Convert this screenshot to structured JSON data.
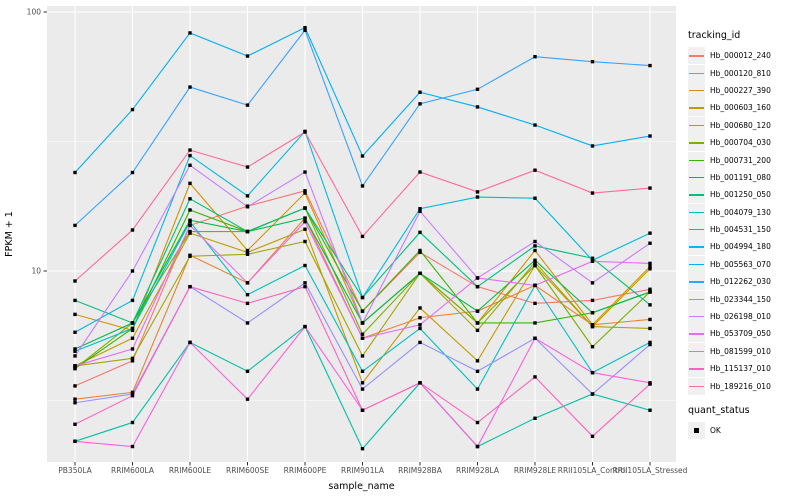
{
  "chart_data": {
    "type": "line",
    "title": "",
    "xlabel": "sample_name",
    "ylabel": "FPKM + 1",
    "y_scale": "log10",
    "y_ticks": [
      10,
      100
    ],
    "y_minor_ticks": [
      3.1623,
      31.623
    ],
    "ylim": [
      1.83,
      105
    ],
    "grid": true,
    "legend_position": "right",
    "legend_title": "tracking_id",
    "legend2_title": "quant_status",
    "legend2_items": [
      {
        "label": "OK",
        "marker": "black-square"
      }
    ],
    "point_color": "#000000",
    "panel_bg": "#EBEBEB",
    "grid_color": "#FFFFFF",
    "tick_label_color": "#4D4D4D",
    "categories": [
      "PB350LA",
      "RRIM600LA",
      "RRIM600LE",
      "RRIM600SE",
      "RRIM600PE",
      "RRIM901LA",
      "RRIM928BA",
      "RRIM928LA",
      "RRIM928LE",
      "RRII105LA_Control",
      "RRII105LA_Stressed"
    ],
    "series": [
      {
        "name": "Hb_000012_240",
        "color": "#F8766D",
        "values": [
          3.6,
          4.5,
          15.0,
          17.8,
          20.4,
          7.0,
          11.8,
          8.7,
          7.5,
          7.7,
          8.5
        ]
      },
      {
        "name": "Hb_000120_810",
        "color": "#EA8331",
        "values": [
          3.2,
          3.4,
          11.5,
          9.0,
          16.0,
          5.5,
          6.6,
          7.0,
          8.8,
          6.2,
          6.5
        ]
      },
      {
        "name": "Hb_000227_390",
        "color": "#D89000",
        "values": [
          6.8,
          5.9,
          21.8,
          12.0,
          20.0,
          6.3,
          9.8,
          6.3,
          12.0,
          6.2,
          10.4
        ]
      },
      {
        "name": "Hb_000603_160",
        "color": "#C09B00",
        "values": [
          4.3,
          5.5,
          14.0,
          11.8,
          14.5,
          3.7,
          7.2,
          4.5,
          10.5,
          6.1,
          10.2
        ]
      },
      {
        "name": "Hb_000680_120",
        "color": "#A3A500",
        "values": [
          4.3,
          4.6,
          11.4,
          11.6,
          13.0,
          4.7,
          9.8,
          5.9,
          10.8,
          6.1,
          6.0
        ]
      },
      {
        "name": "Hb_000704_030",
        "color": "#7CAE00",
        "values": [
          4.2,
          6.3,
          14.2,
          14.2,
          17.5,
          5.7,
          9.8,
          6.3,
          10.5,
          5.1,
          8.3
        ]
      },
      {
        "name": "Hb_000731_200",
        "color": "#39B600",
        "values": [
          4.2,
          6.0,
          17.2,
          14.2,
          17.5,
          7.0,
          12.0,
          6.3,
          6.3,
          6.9,
          8.3
        ]
      },
      {
        "name": "Hb_001191_080",
        "color": "#00BB4E",
        "values": [
          5.0,
          6.3,
          15.7,
          14.2,
          16.0,
          6.3,
          9.8,
          7.0,
          11.0,
          6.9,
          8.3
        ]
      },
      {
        "name": "Hb_001250_050",
        "color": "#00BF7D",
        "values": [
          7.7,
          6.3,
          19.0,
          14.2,
          17.5,
          7.9,
          14.1,
          8.7,
          12.5,
          11.2,
          7.4
        ]
      },
      {
        "name": "Hb_004079_130",
        "color": "#00C1A3",
        "values": [
          2.2,
          2.6,
          5.3,
          4.1,
          6.1,
          2.06,
          3.7,
          2.1,
          2.7,
          3.35,
          2.9
        ]
      },
      {
        "name": "Hb_004531_150",
        "color": "#00BFC4",
        "values": [
          4.9,
          6.0,
          15.5,
          8.1,
          10.5,
          4.1,
          6.0,
          3.5,
          8.8,
          4.05,
          5.3
        ]
      },
      {
        "name": "Hb_004994_180",
        "color": "#00BAE0",
        "values": [
          5.8,
          7.7,
          27.9,
          19.5,
          34.6,
          7.9,
          17.4,
          19.3,
          19.1,
          11.0,
          14.0
        ]
      },
      {
        "name": "Hb_005563_070",
        "color": "#00B0F6",
        "values": [
          24.0,
          42.0,
          83.0,
          67.6,
          87.0,
          27.8,
          49.0,
          43.0,
          36.6,
          30.4,
          33.2
        ]
      },
      {
        "name": "Hb_012262_030",
        "color": "#35A2FF",
        "values": [
          15.0,
          24.0,
          51.3,
          43.7,
          85.0,
          21.3,
          44.2,
          50.3,
          67.2,
          64.3,
          62.1
        ]
      },
      {
        "name": "Hb_023344_150",
        "color": "#9590FF",
        "values": [
          3.1,
          3.35,
          8.7,
          6.3,
          9.0,
          3.5,
          5.3,
          4.1,
          5.5,
          3.35,
          5.2
        ]
      },
      {
        "name": "Hb_026198_010",
        "color": "#C77CFF",
        "values": [
          4.7,
          10.0,
          25.6,
          17.7,
          24.1,
          6.3,
          17.0,
          9.4,
          13.0,
          9.0,
          12.8
        ]
      },
      {
        "name": "Hb_053709_050",
        "color": "#E76BF3",
        "values": [
          4.3,
          5.0,
          15.0,
          9.0,
          15.5,
          5.5,
          6.2,
          9.4,
          8.8,
          10.9,
          10.7
        ]
      },
      {
        "name": "Hb_081599_010",
        "color": "#FA62DB",
        "values": [
          2.2,
          2.1,
          5.3,
          3.2,
          6.1,
          2.9,
          3.7,
          2.1,
          5.5,
          4.05,
          3.7
        ]
      },
      {
        "name": "Hb_115137_010",
        "color": "#FF62BC",
        "values": [
          2.56,
          3.3,
          8.7,
          7.5,
          8.7,
          2.9,
          3.7,
          2.6,
          3.9,
          2.3,
          3.66
        ]
      },
      {
        "name": "Hb_189216_010",
        "color": "#FF6A98",
        "values": [
          9.15,
          14.4,
          29.3,
          25.2,
          34.4,
          13.6,
          24.1,
          20.2,
          24.5,
          20.0,
          20.9
        ]
      }
    ]
  }
}
